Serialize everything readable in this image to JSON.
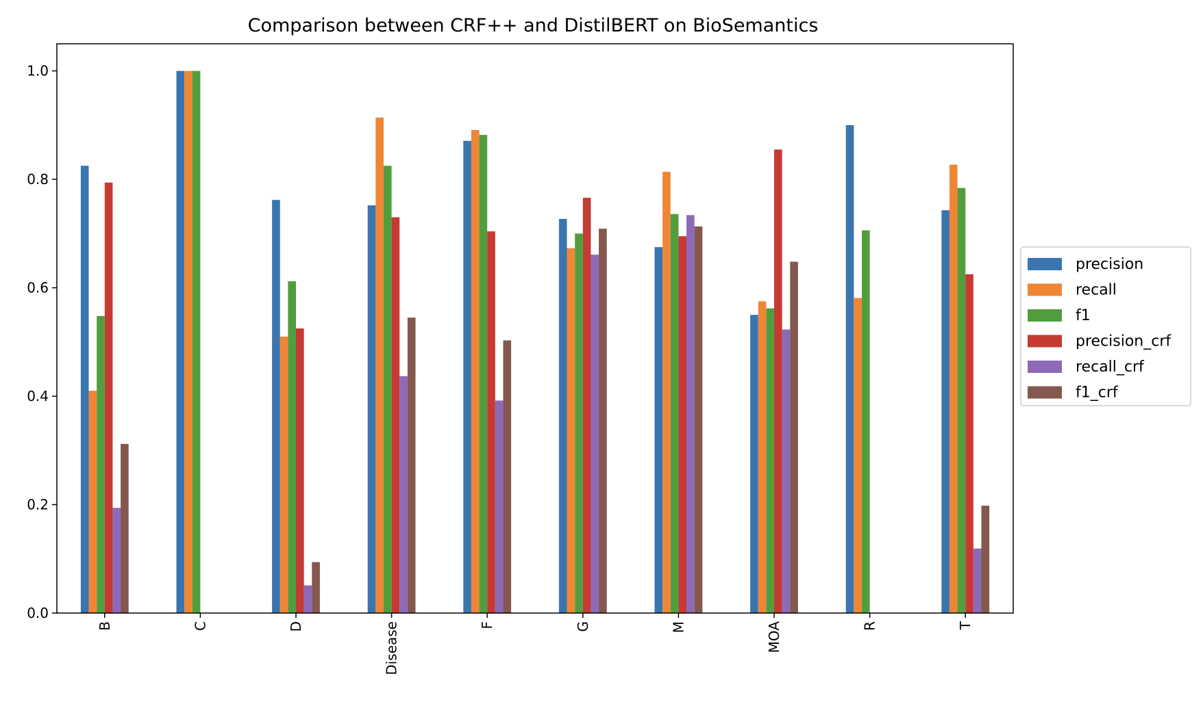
{
  "chart_data": {
    "type": "bar",
    "title": "Comparison between CRF++ and DistilBERT on BioSemantics",
    "xlabel": "",
    "ylabel": "",
    "ylim": [
      0,
      1.05
    ],
    "yticks": [
      0.0,
      0.2,
      0.4,
      0.6,
      0.8,
      1.0
    ],
    "ytick_labels": [
      "0.0",
      "0.2",
      "0.4",
      "0.6",
      "0.8",
      "1.0"
    ],
    "grid": false,
    "legend_position": "right",
    "categories": [
      "B",
      "C",
      "D",
      "Disease",
      "F",
      "G",
      "M",
      "MOA",
      "R",
      "T"
    ],
    "series": [
      {
        "name": "precision",
        "color": "#3a75af",
        "values": [
          0.825,
          1.0,
          0.762,
          0.752,
          0.871,
          0.727,
          0.675,
          0.55,
          0.9,
          0.743
        ]
      },
      {
        "name": "recall",
        "color": "#ef8636",
        "values": [
          0.41,
          1.0,
          0.51,
          0.914,
          0.891,
          0.673,
          0.814,
          0.575,
          0.581,
          0.827
        ]
      },
      {
        "name": "f1",
        "color": "#529e3f",
        "values": [
          0.548,
          1.0,
          0.612,
          0.825,
          0.882,
          0.7,
          0.736,
          0.562,
          0.706,
          0.784
        ]
      },
      {
        "name": "precision_crf",
        "color": "#c53a32",
        "values": [
          0.794,
          0.0,
          0.525,
          0.73,
          0.704,
          0.766,
          0.695,
          0.855,
          0.0,
          0.625
        ]
      },
      {
        "name": "recall_crf",
        "color": "#8d69b8",
        "values": [
          0.194,
          0.0,
          0.051,
          0.437,
          0.392,
          0.661,
          0.734,
          0.523,
          0.0,
          0.119
        ]
      },
      {
        "name": "f1_crf",
        "color": "#84584e",
        "values": [
          0.312,
          0.0,
          0.094,
          0.545,
          0.503,
          0.709,
          0.713,
          0.648,
          0.0,
          0.198
        ]
      }
    ]
  }
}
